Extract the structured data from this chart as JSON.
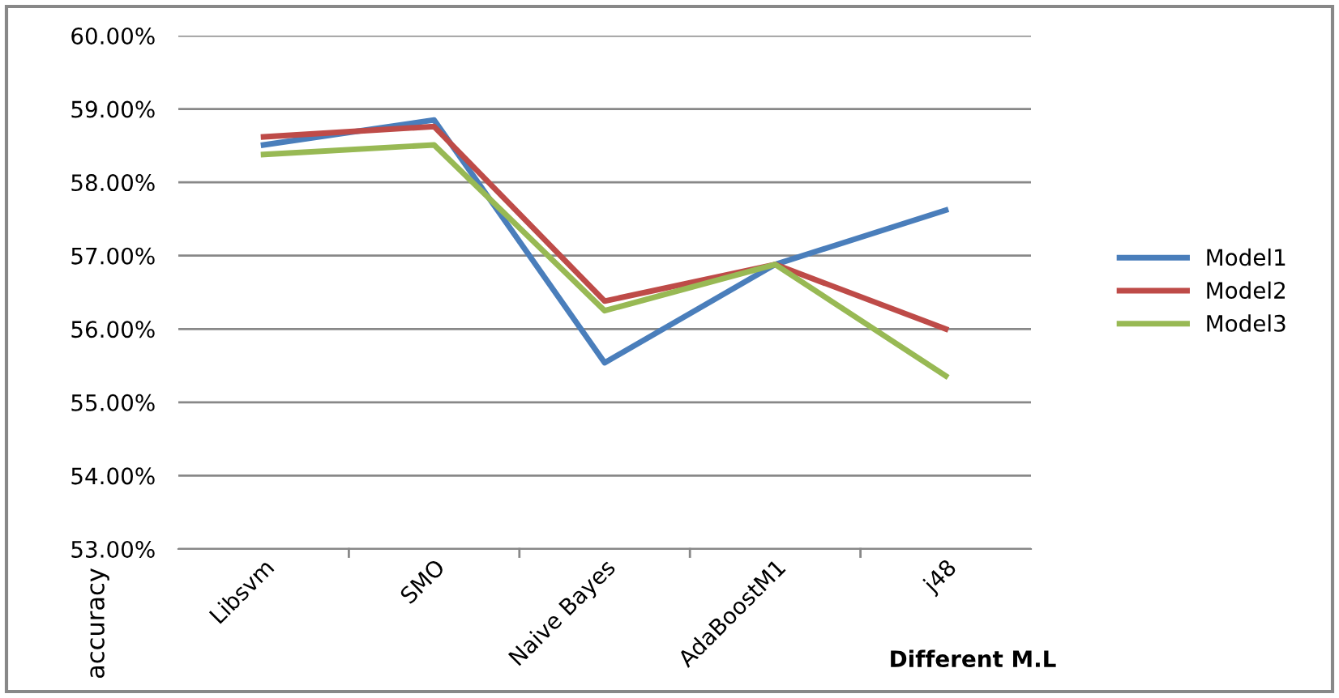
{
  "chart_data": {
    "type": "line",
    "xlabel": "Different M.L",
    "ylabel": "accuracy",
    "categories": [
      "Libsvm",
      "SMO",
      "Naive Bayes",
      "AdaBoostM1",
      "j48"
    ],
    "series": [
      {
        "name": "Model1",
        "color": "#4a7ebb",
        "values": [
          58.51,
          58.85,
          55.54,
          56.88,
          57.62
        ]
      },
      {
        "name": "Model2",
        "color": "#be4b48",
        "values": [
          58.62,
          58.76,
          56.38,
          56.88,
          56.0
        ]
      },
      {
        "name": "Model3",
        "color": "#98b954",
        "values": [
          58.38,
          58.51,
          56.25,
          56.88,
          55.36
        ]
      }
    ],
    "ylim": [
      53,
      60
    ],
    "yticks": [
      {
        "value": 53,
        "label": "53.00%"
      },
      {
        "value": 54,
        "label": "54.00%"
      },
      {
        "value": 55,
        "label": "55.00%"
      },
      {
        "value": 56,
        "label": "56.00%"
      },
      {
        "value": 57,
        "label": "57.00%"
      },
      {
        "value": 58,
        "label": "58.00%"
      },
      {
        "value": 59,
        "label": "59.00%"
      },
      {
        "value": 60,
        "label": "60.00%"
      }
    ],
    "grid": "y",
    "legend": "right",
    "marker": "none",
    "line_style": "solid"
  }
}
